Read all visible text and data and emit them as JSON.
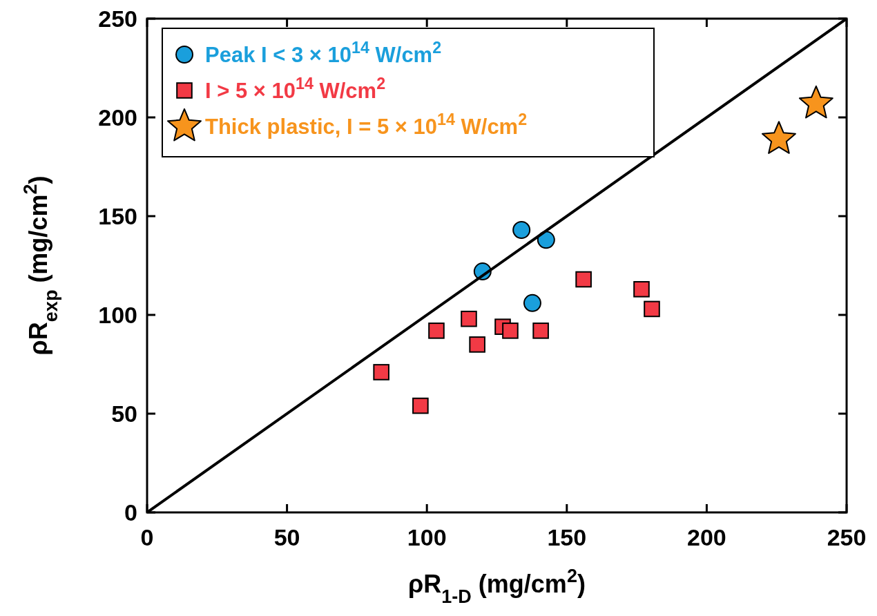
{
  "chart_data": {
    "type": "scatter",
    "xlabel": "ρR$_{1-D}$ (mg/cm$^{2}$)",
    "ylabel": "ρR$_{exp}$ (mg/cm$^{2}$)",
    "xlim": [
      0,
      250
    ],
    "ylim": [
      0,
      250
    ],
    "xticks": [
      0,
      50,
      100,
      150,
      200,
      250
    ],
    "yticks": [
      0,
      50,
      100,
      150,
      200,
      250
    ],
    "grid": false,
    "legend": "top left",
    "series": [
      {
        "name": "Peak I < 3 × 10$^{14}$ W/cm$^{2}$",
        "color": "#1a9fdc",
        "marker": "circle",
        "x": [
          119.9,
          133.8,
          142.6,
          137.7
        ],
        "values": [
          122,
          143,
          138,
          106
        ]
      },
      {
        "name": "I > 5 × 10$^{14}$ W/cm$^{2}$",
        "color": "#f23a45",
        "marker": "square",
        "x": [
          83.7,
          97.7,
          103.4,
          115,
          118,
          127.1,
          129.8,
          140.7,
          156,
          176.7,
          180.4
        ],
        "values": [
          71,
          54,
          92,
          98,
          85,
          94,
          92,
          92,
          118,
          113,
          103
        ]
      },
      {
        "name": "Thick plastic, I = 5 × 10$^{14}$ W/cm$^{2}$",
        "color": "#f7941d",
        "marker": "star",
        "x": [
          225.8,
          239.1
        ],
        "values": [
          189,
          207
        ]
      },
      {
        "type": "line",
        "color": "#000000",
        "x": [
          0,
          250
        ],
        "values": [
          0,
          250
        ]
      }
    ]
  }
}
